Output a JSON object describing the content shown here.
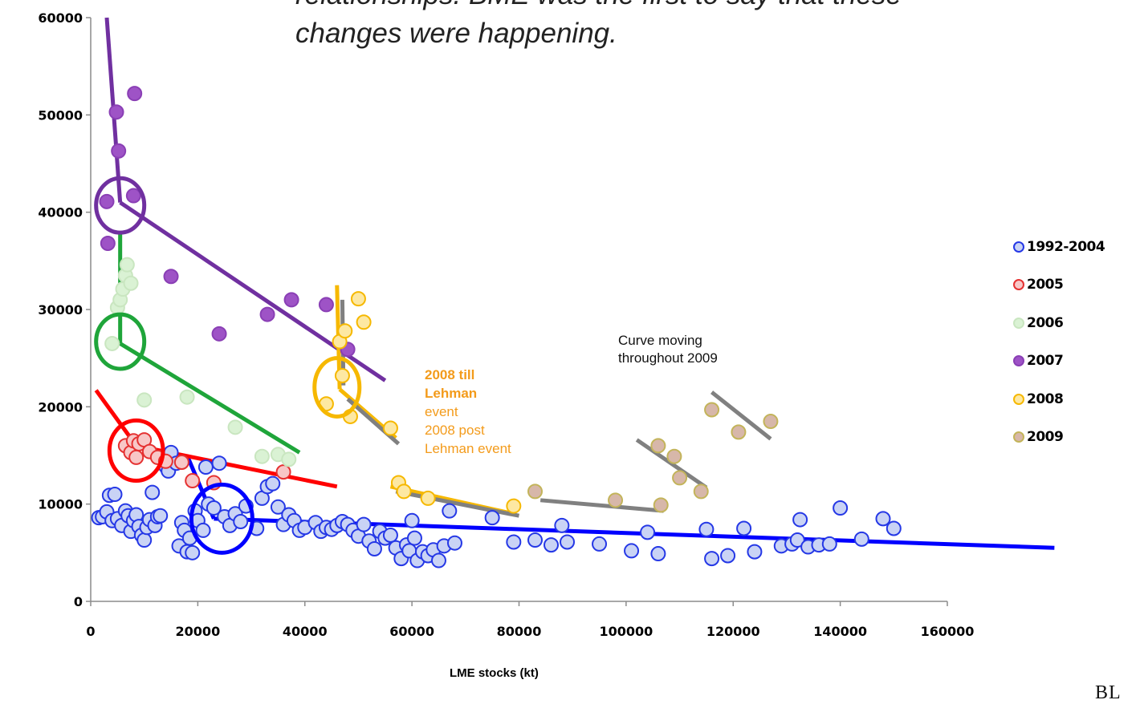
{
  "headline": {
    "line1": "relationships. BME was the first to say that these",
    "line2": "changes were happening."
  },
  "notes": {
    "curve_moving": [
      "Curve moving",
      "throughout 2009"
    ],
    "lehman_bold": [
      "2008 till",
      "Lehman"
    ],
    "lehman_normal": [
      "event",
      "2008 post",
      "Lehman event"
    ]
  },
  "logo_text": "BL",
  "chart_data": {
    "type": "scatter",
    "xlabel": "LME stocks (kt)",
    "ylabel": "",
    "xlim": [
      0,
      160000
    ],
    "ylim": [
      0,
      60000
    ],
    "xticks": [
      "0",
      "20000",
      "40000",
      "60000",
      "80000",
      "100000",
      "120000",
      "140000",
      "160000"
    ],
    "yticks": [
      "0",
      "10000",
      "20000",
      "30000",
      "40000",
      "50000",
      "60000"
    ],
    "grid": false,
    "legend_position": "right",
    "series": [
      {
        "name": "1992-2004",
        "marker_fill": "#c9d3f5",
        "marker_edge": "#2538e6",
        "points": [
          [
            1500,
            8600
          ],
          [
            2200,
            8700
          ],
          [
            3000,
            9200
          ],
          [
            3500,
            10900
          ],
          [
            4000,
            8300
          ],
          [
            4500,
            11000
          ],
          [
            5000,
            8500
          ],
          [
            5800,
            7800
          ],
          [
            6500,
            9300
          ],
          [
            7000,
            8800
          ],
          [
            7500,
            7200
          ],
          [
            8000,
            8300
          ],
          [
            8500,
            8900
          ],
          [
            9000,
            7700
          ],
          [
            9500,
            6800
          ],
          [
            10000,
            6300
          ],
          [
            10500,
            7600
          ],
          [
            11000,
            8400
          ],
          [
            11500,
            11200
          ],
          [
            12000,
            7800
          ],
          [
            12500,
            8700
          ],
          [
            13000,
            8800
          ],
          [
            14000,
            13900
          ],
          [
            14500,
            13400
          ],
          [
            15000,
            15300
          ],
          [
            16000,
            14200
          ],
          [
            16500,
            5700
          ],
          [
            17000,
            8100
          ],
          [
            17500,
            7300
          ],
          [
            18000,
            5100
          ],
          [
            18500,
            6500
          ],
          [
            19000,
            5000
          ],
          [
            19500,
            9300
          ],
          [
            20000,
            8300
          ],
          [
            21000,
            7300
          ],
          [
            21500,
            13800
          ],
          [
            22000,
            10000
          ],
          [
            23000,
            9600
          ],
          [
            24000,
            14200
          ],
          [
            25000,
            8700
          ],
          [
            26000,
            7800
          ],
          [
            27000,
            9000
          ],
          [
            28000,
            8200
          ],
          [
            29000,
            9800
          ],
          [
            31000,
            7500
          ],
          [
            32000,
            10600
          ],
          [
            33000,
            11800
          ],
          [
            34000,
            12100
          ],
          [
            35000,
            9700
          ],
          [
            36000,
            7900
          ],
          [
            37000,
            8900
          ],
          [
            38000,
            8300
          ],
          [
            39000,
            7300
          ],
          [
            40000,
            7600
          ],
          [
            42000,
            8100
          ],
          [
            43000,
            7200
          ],
          [
            44000,
            7600
          ],
          [
            45000,
            7400
          ],
          [
            46000,
            7800
          ],
          [
            47000,
            8200
          ],
          [
            48000,
            7900
          ],
          [
            49000,
            7300
          ],
          [
            50000,
            6700
          ],
          [
            51000,
            7900
          ],
          [
            52000,
            6200
          ],
          [
            53000,
            5400
          ],
          [
            54000,
            7200
          ],
          [
            55000,
            6500
          ],
          [
            56000,
            6800
          ],
          [
            57000,
            5500
          ],
          [
            58000,
            4400
          ],
          [
            59000,
            5800
          ],
          [
            59500,
            5200
          ],
          [
            60000,
            8300
          ],
          [
            60500,
            6500
          ],
          [
            61000,
            4200
          ],
          [
            62000,
            5100
          ],
          [
            63000,
            4700
          ],
          [
            64000,
            5300
          ],
          [
            65000,
            4200
          ],
          [
            66000,
            5700
          ],
          [
            67000,
            9300
          ],
          [
            68000,
            6000
          ],
          [
            75000,
            8600
          ],
          [
            79000,
            6100
          ],
          [
            83000,
            6300
          ],
          [
            86000,
            5800
          ],
          [
            88000,
            7800
          ],
          [
            89000,
            6100
          ],
          [
            95000,
            5900
          ],
          [
            101000,
            5200
          ],
          [
            104000,
            7100
          ],
          [
            106000,
            4900
          ],
          [
            115000,
            7400
          ],
          [
            116000,
            4400
          ],
          [
            119000,
            4700
          ],
          [
            122000,
            7500
          ],
          [
            124000,
            5100
          ],
          [
            129000,
            5700
          ],
          [
            131000,
            5900
          ],
          [
            132000,
            6300
          ],
          [
            132500,
            8400
          ],
          [
            134000,
            5600
          ],
          [
            136000,
            5800
          ],
          [
            138000,
            5900
          ],
          [
            140000,
            9600
          ],
          [
            144000,
            6400
          ],
          [
            148000,
            8500
          ],
          [
            150000,
            7500
          ]
        ]
      },
      {
        "name": "2005",
        "marker_fill": "#f8c7c7",
        "marker_edge": "#e53131",
        "points": [
          [
            6500,
            16000
          ],
          [
            7500,
            15300
          ],
          [
            8000,
            16500
          ],
          [
            8500,
            14800
          ],
          [
            9000,
            16200
          ],
          [
            10000,
            16600
          ],
          [
            11000,
            15400
          ],
          [
            12500,
            14800
          ],
          [
            14000,
            14400
          ],
          [
            17000,
            14300
          ],
          [
            19000,
            12400
          ],
          [
            23000,
            12200
          ],
          [
            36000,
            13300
          ]
        ]
      },
      {
        "name": "2006",
        "marker_fill": "#daf2d4",
        "marker_edge": "#c9e6c0",
        "points": [
          [
            4000,
            26500
          ],
          [
            5000,
            30200
          ],
          [
            5500,
            31000
          ],
          [
            6000,
            32100
          ],
          [
            6500,
            33500
          ],
          [
            6800,
            34600
          ],
          [
            7500,
            32700
          ],
          [
            10000,
            20700
          ],
          [
            18000,
            21000
          ],
          [
            27000,
            17900
          ],
          [
            32000,
            14900
          ],
          [
            35000,
            15100
          ],
          [
            37000,
            14600
          ]
        ]
      },
      {
        "name": "2007",
        "marker_fill": "#9e53c6",
        "marker_edge": "#8a3fb5",
        "points": [
          [
            3000,
            41100
          ],
          [
            3200,
            36800
          ],
          [
            4800,
            50300
          ],
          [
            5200,
            46300
          ],
          [
            8200,
            52200
          ],
          [
            8000,
            41700
          ],
          [
            15000,
            33400
          ],
          [
            24000,
            27500
          ],
          [
            33000,
            29500
          ],
          [
            37500,
            31000
          ],
          [
            44000,
            30500
          ],
          [
            48000,
            25900
          ]
        ]
      },
      {
        "name": "2008",
        "marker_fill": "#fde8a2",
        "marker_edge": "#f6b800",
        "points": [
          [
            44000,
            20300
          ],
          [
            46500,
            26700
          ],
          [
            47000,
            23200
          ],
          [
            47500,
            27800
          ],
          [
            48500,
            19000
          ],
          [
            50000,
            31100
          ],
          [
            51000,
            28700
          ],
          [
            56000,
            17800
          ],
          [
            57500,
            12200
          ],
          [
            58500,
            11300
          ],
          [
            63000,
            10600
          ],
          [
            79000,
            9800
          ]
        ]
      },
      {
        "name": "2009",
        "marker_fill": "#d7b7a9",
        "marker_edge": "#c3b45a",
        "points": [
          [
            83000,
            11300
          ],
          [
            98000,
            10400
          ],
          [
            106000,
            16000
          ],
          [
            106500,
            9900
          ],
          [
            109000,
            14900
          ],
          [
            110000,
            12700
          ],
          [
            114000,
            11300
          ],
          [
            116000,
            19700
          ],
          [
            121000,
            17400
          ],
          [
            127000,
            18500
          ]
        ]
      }
    ],
    "annotations": {
      "trend_lines": [
        {
          "color": "#0000ff",
          "from": [
            18000,
            15000
          ],
          "to": [
            23000,
            8500
          ]
        },
        {
          "color": "#0000ff",
          "from": [
            23000,
            8500
          ],
          "to": [
            180000,
            5500
          ]
        },
        {
          "color": "#ff0000",
          "from": [
            1000,
            21700
          ],
          "to": [
            8500,
            16000
          ]
        },
        {
          "color": "#ff0000",
          "from": [
            8500,
            16000
          ],
          "to": [
            46000,
            11800
          ]
        },
        {
          "color": "#1fa53a",
          "from": [
            5500,
            38000
          ],
          "to": [
            5500,
            26500
          ]
        },
        {
          "color": "#1fa53a",
          "from": [
            5500,
            26500
          ],
          "to": [
            39000,
            15300
          ]
        },
        {
          "color": "#7030a0",
          "from": [
            3000,
            60000
          ],
          "to": [
            5500,
            41000
          ]
        },
        {
          "color": "#7030a0",
          "from": [
            5500,
            41000
          ],
          "to": [
            55000,
            22700
          ]
        },
        {
          "color": "#f6b800",
          "from": [
            46000,
            32500
          ],
          "to": [
            46500,
            21800
          ]
        },
        {
          "color": "#f6b800",
          "from": [
            46500,
            21800
          ],
          "to": [
            57000,
            16800
          ]
        },
        {
          "color": "#f6b800",
          "from": [
            56000,
            11800
          ],
          "to": [
            79000,
            9000
          ]
        },
        {
          "color": "#808080",
          "from": [
            47000,
            31000
          ],
          "to": [
            47200,
            22200
          ]
        },
        {
          "color": "#808080",
          "from": [
            48000,
            20800
          ],
          "to": [
            57500,
            16200
          ]
        },
        {
          "color": "#808080",
          "from": [
            57000,
            11300
          ],
          "to": [
            80000,
            8800
          ]
        },
        {
          "color": "#808080",
          "from": [
            84000,
            10400
          ],
          "to": [
            107000,
            9300
          ]
        },
        {
          "color": "#808080",
          "from": [
            102000,
            16600
          ],
          "to": [
            115000,
            11700
          ]
        },
        {
          "color": "#808080",
          "from": [
            116000,
            21500
          ],
          "to": [
            127000,
            16700
          ]
        }
      ],
      "circles": [
        {
          "color": "#7030a0",
          "center": [
            5500,
            40700
          ],
          "radius_x": 4500,
          "radius_y": 2800
        },
        {
          "color": "#1fa53a",
          "center": [
            5500,
            26700
          ],
          "radius_x": 4500,
          "radius_y": 2800
        },
        {
          "color": "#ff0000",
          "center": [
            8500,
            15500
          ],
          "radius_x": 5000,
          "radius_y": 3100
        },
        {
          "color": "#0000ff",
          "center": [
            24500,
            8500
          ],
          "radius_x": 5700,
          "radius_y": 3500
        },
        {
          "color": "#f6b800",
          "center": [
            46000,
            22000
          ],
          "radius_x": 4200,
          "radius_y": 3000
        }
      ]
    }
  }
}
